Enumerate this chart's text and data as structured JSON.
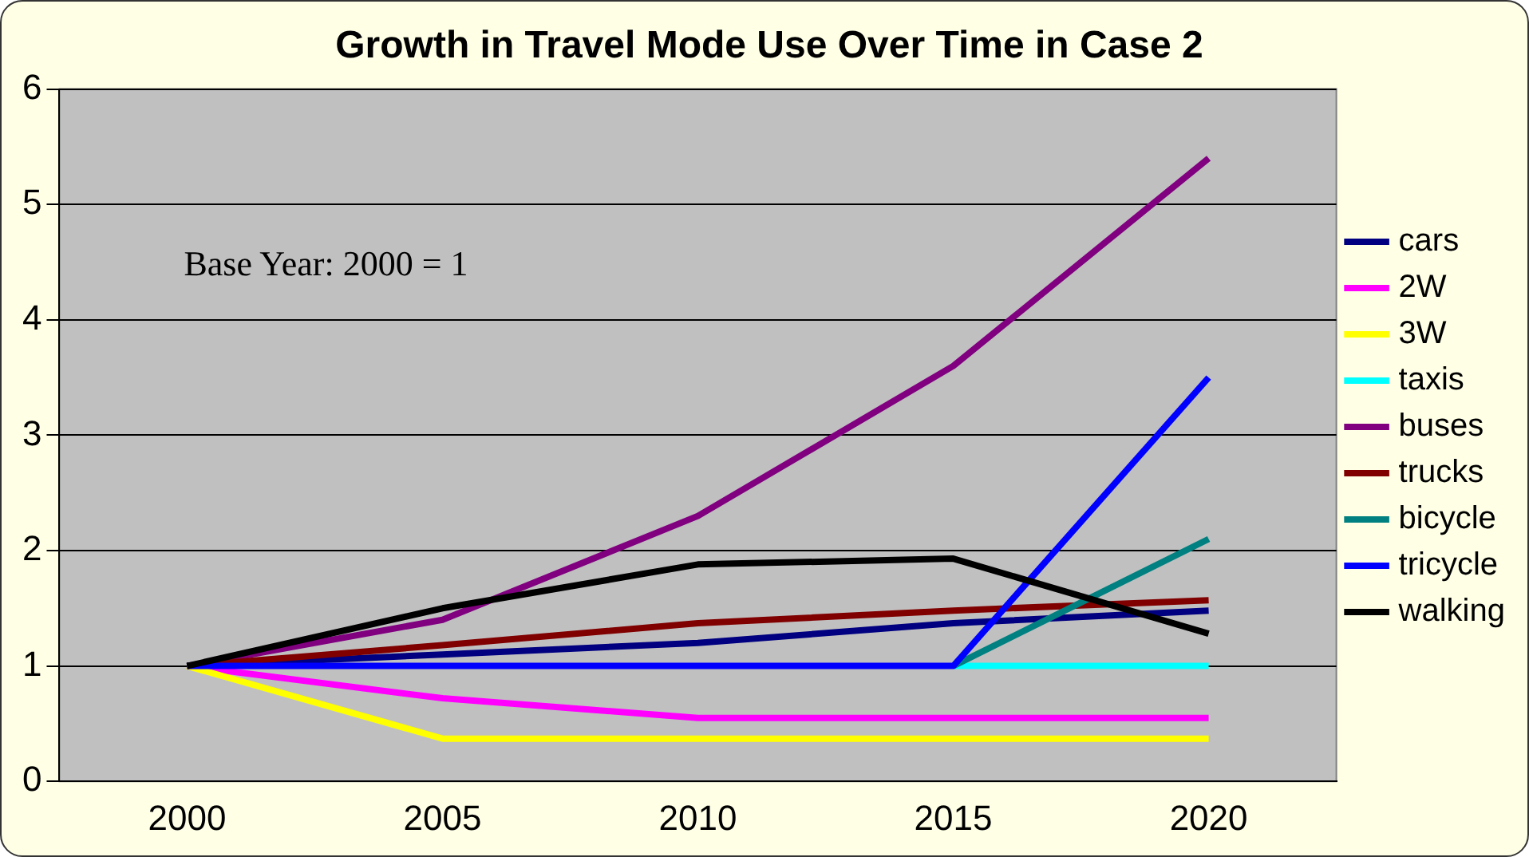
{
  "chart_data": {
    "type": "line",
    "title": "Growth in Travel Mode Use Over Time in Case 2",
    "categories": [
      "2000",
      "2005",
      "2010",
      "2015",
      "2020"
    ],
    "series": [
      {
        "name": "cars",
        "color": "#000080",
        "values": [
          1,
          1.1,
          1.2,
          1.37,
          1.48
        ]
      },
      {
        "name": "2W",
        "color": "#ff00ff",
        "values": [
          1,
          0.72,
          0.55,
          0.55,
          0.55
        ]
      },
      {
        "name": "3W",
        "color": "#ffff00",
        "values": [
          1,
          0.37,
          0.37,
          0.37,
          0.37
        ]
      },
      {
        "name": "taxis",
        "color": "#00ffff",
        "values": [
          null,
          null,
          null,
          1,
          1
        ]
      },
      {
        "name": "buses",
        "color": "#800080",
        "values": [
          1,
          1.4,
          2.3,
          3.6,
          5.4
        ]
      },
      {
        "name": "trucks",
        "color": "#800000",
        "values": [
          1,
          1.18,
          1.37,
          1.48,
          1.57
        ]
      },
      {
        "name": "bicycle",
        "color": "#008080",
        "values": [
          null,
          null,
          null,
          1,
          2.1
        ]
      },
      {
        "name": "tricycle",
        "color": "#0000ff",
        "values": [
          1,
          1,
          1,
          1,
          3.5
        ]
      },
      {
        "name": "walking",
        "color": "#000000",
        "values": [
          1,
          1.5,
          1.88,
          1.93,
          1.28
        ]
      }
    ],
    "ylim": [
      0,
      6
    ],
    "yticks": [
      0,
      1,
      2,
      3,
      4,
      5,
      6
    ],
    "grid": "y",
    "legend": "right",
    "marker": "none",
    "line_style": "solid",
    "annotations": [
      "Base Year: 2000 = 1"
    ]
  }
}
